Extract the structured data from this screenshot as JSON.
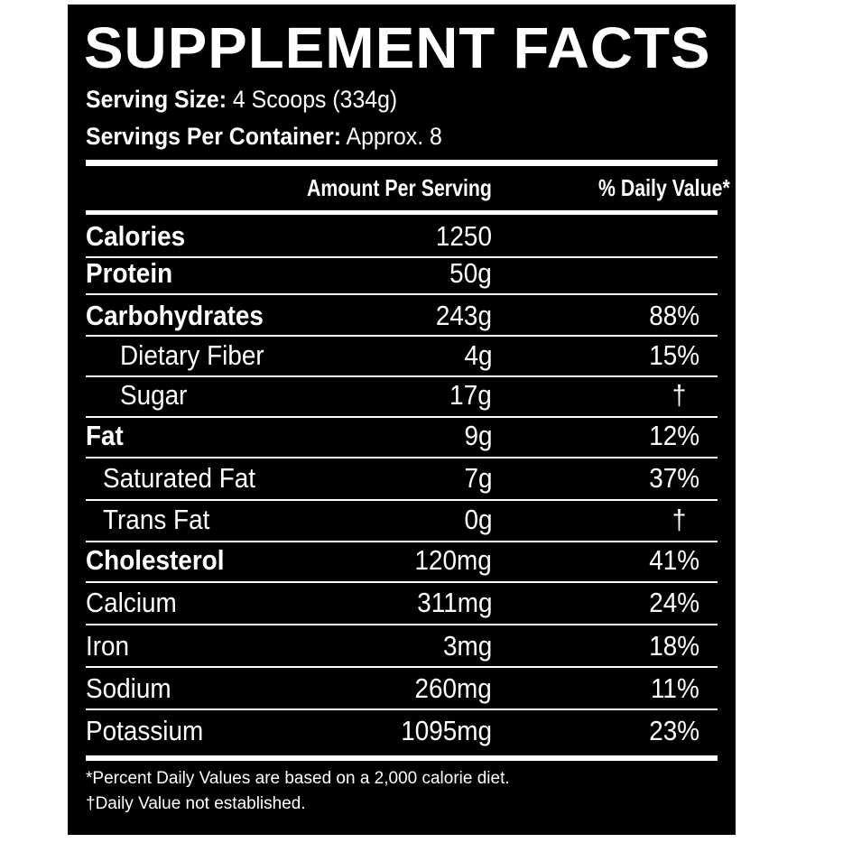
{
  "title": "SUPPLEMENT FACTS",
  "serving_size": {
    "label": "Serving Size:",
    "value": "4 Scoops (334g)"
  },
  "servings_per_container": {
    "label": "Servings Per Container:",
    "value": "Approx. 8"
  },
  "table": {
    "columns": [
      "Amount Per Serving",
      "% Daily Value*"
    ],
    "rows": [
      {
        "name": "Calories",
        "amount": "1250",
        "dv": null,
        "bold": true,
        "indent": 0
      },
      {
        "name": "Protein",
        "amount": "50g",
        "dv": null,
        "bold": true,
        "indent": 0
      },
      {
        "name": "Carbohydrates",
        "amount": "243g",
        "dv": "88%",
        "bold": true,
        "indent": 0
      },
      {
        "name": "Dietary Fiber",
        "amount": "4g",
        "dv": "15%",
        "bold": false,
        "indent": 2
      },
      {
        "name": "Sugar",
        "amount": "17g",
        "dv": "†",
        "bold": false,
        "indent": 2
      },
      {
        "name": "Fat",
        "amount": "9g",
        "dv": "12%",
        "bold": true,
        "indent": 0
      },
      {
        "name": "Saturated Fat",
        "amount": "7g",
        "dv": "37%",
        "bold": false,
        "indent": 1
      },
      {
        "name": "Trans Fat",
        "amount": "0g",
        "dv": "†",
        "bold": false,
        "indent": 1
      },
      {
        "name": "Cholesterol",
        "amount": "120mg",
        "dv": "41%",
        "bold": true,
        "indent": 0
      },
      {
        "name": "Calcium",
        "amount": "311mg",
        "dv": "24%",
        "bold": false,
        "indent": 0
      },
      {
        "name": "Iron",
        "amount": "3mg",
        "dv": "18%",
        "bold": false,
        "indent": 0
      },
      {
        "name": "Sodium",
        "amount": "260mg",
        "dv": "11%",
        "bold": false,
        "indent": 0
      },
      {
        "name": "Potassium",
        "amount": "1095mg",
        "dv": "23%",
        "bold": false,
        "indent": 0
      }
    ]
  },
  "footnotes": [
    "*Percent Daily Values are based on a 2,000 calorie diet.",
    "†Daily Value not established."
  ]
}
